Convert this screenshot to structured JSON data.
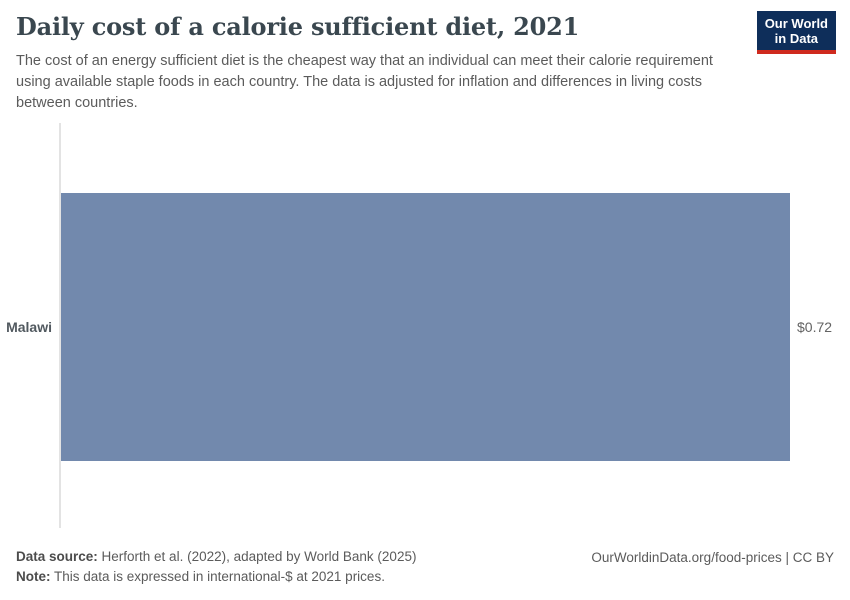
{
  "header": {
    "title": "Daily cost of a calorie sufficient diet, 2021",
    "subtitle": "The cost of an energy sufficient diet is the cheapest way that an individual can meet their calorie requirement using available staple foods in each country. The data is adjusted for inflation and differences in living costs between countries.",
    "logo": {
      "line1": "Our World",
      "line2": "in Data"
    }
  },
  "chart_data": {
    "type": "bar",
    "orientation": "horizontal",
    "title": "Daily cost of a calorie sufficient diet, 2021",
    "categories": [
      "Malawi"
    ],
    "values": [
      0.72
    ],
    "value_labels": [
      "$0.72"
    ],
    "unit": "international-$ per day",
    "xlim": [
      0,
      0.72
    ],
    "grid": false,
    "legend": "none",
    "bar_color": "#7289ad"
  },
  "footer": {
    "datasource_label": "Data source:",
    "datasource_text": " Herforth et al. (2022), adapted by World Bank (2025)",
    "note_label": "Note:",
    "note_text": " This data is expressed in international-$ at 2021 prices.",
    "attribution": "OurWorldinData.org/food-prices | CC BY"
  },
  "colors": {
    "bar": "#7289ad",
    "logo_background": "#0e2e5a",
    "logo_accent": "#cf2a1e",
    "axis_line": "#e3e3e3"
  }
}
